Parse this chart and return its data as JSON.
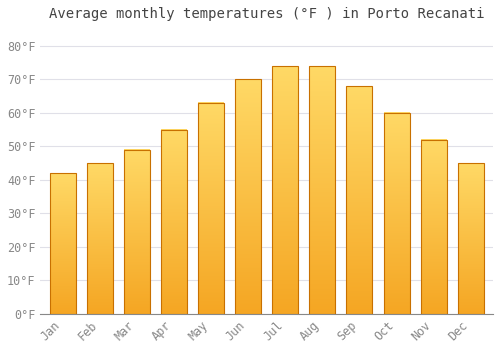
{
  "months": [
    "Jan",
    "Feb",
    "Mar",
    "Apr",
    "May",
    "Jun",
    "Jul",
    "Aug",
    "Sep",
    "Oct",
    "Nov",
    "Dec"
  ],
  "values": [
    42,
    45,
    49,
    55,
    63,
    70,
    74,
    74,
    68,
    60,
    52,
    45
  ],
  "bar_color_bottom": "#F5A623",
  "bar_color_top": "#FFD966",
  "bar_edge_color": "#C87000",
  "background_color": "#FFFFFF",
  "plot_bg_color": "#FFFFFF",
  "title": "Average monthly temperatures (°F ) in Porto Recanati",
  "title_fontsize": 10,
  "ylim": [
    0,
    85
  ],
  "yticks": [
    0,
    10,
    20,
    30,
    40,
    50,
    60,
    70,
    80
  ],
  "ytick_labels": [
    "0°F",
    "10°F",
    "20°F",
    "30°F",
    "40°F",
    "50°F",
    "60°F",
    "70°F",
    "80°F"
  ],
  "grid_color": "#E0E0E8",
  "tick_label_color": "#888888",
  "title_color": "#444444"
}
